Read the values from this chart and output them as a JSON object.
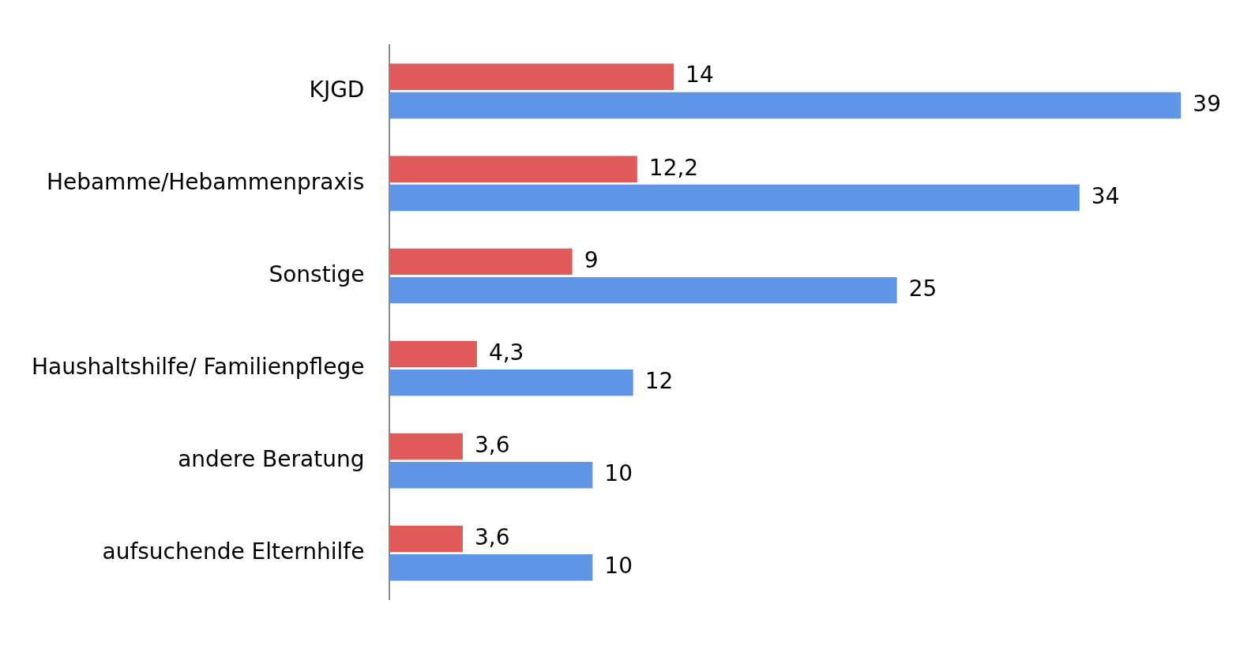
{
  "chart_data": {
    "type": "bar",
    "orientation": "horizontal",
    "categories": [
      "KJGD",
      "Hebamme/Hebammenpraxis",
      "Sonstige",
      "Haushaltshilfe/ Familienpflege",
      "andere Beratung",
      "aufsuchende Elternhilfe"
    ],
    "series": [
      {
        "color": "#e05a5a",
        "values": [
          14,
          12.2,
          9,
          4.3,
          3.6,
          3.6
        ],
        "value_labels": [
          "14",
          "12,2",
          "9",
          "4,3",
          "3,6",
          "3,6"
        ]
      },
      {
        "color": "#5f95e6",
        "values": [
          39,
          34,
          25,
          12,
          10,
          10
        ],
        "value_labels": [
          "39",
          "34",
          "25",
          "12",
          "10",
          "10"
        ]
      }
    ],
    "legend": false,
    "tick_labels": "y"
  }
}
